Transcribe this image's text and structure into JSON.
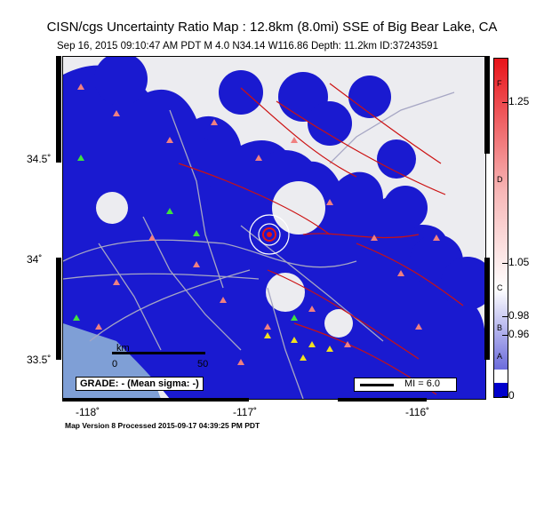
{
  "header": {
    "title": "CISN/cgs Uncertainty Ratio Map : 12.8km (8.0mi) SSE of Big Bear Lake, CA",
    "subtitle": "Sep 16, 2015 09:10:47 AM PDT   M 4.0   N34.14 W116.86   Depth: 11.2km   ID:37243591"
  },
  "axes": {
    "lat_labels": [
      "34.5˚",
      "34˚",
      "33.5˚"
    ],
    "lon_labels": [
      "-118˚",
      "-117˚",
      "-116˚"
    ]
  },
  "colorbar": {
    "ticks": [
      "1.25",
      "1.05",
      "0.98",
      "0.96",
      "0"
    ],
    "grades": [
      "F",
      "D",
      "C",
      "B",
      "A"
    ],
    "colors": {
      "high": "#e8141a",
      "mid": "#f7b7b7",
      "neutral": "#ffffff",
      "low": "#6b6bdb",
      "zero": "#0000cc"
    }
  },
  "legend": {
    "grade_label": "GRADE: - (Mean sigma: -)",
    "mi_label": "MI = 6.0"
  },
  "scale_bar": {
    "unit": "km",
    "start": "0",
    "end": "50"
  },
  "footer": "Map Version 8 Processed 2015-09-17 04:39:25 PM PDT"
}
